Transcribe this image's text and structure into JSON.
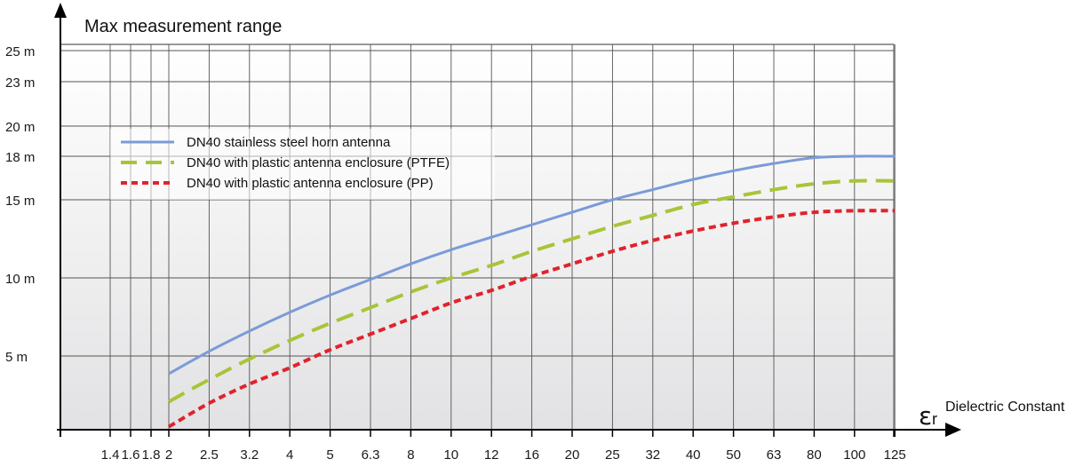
{
  "chart_data": {
    "type": "line",
    "ylabel": "Max measurement range",
    "xlabel": "Dielectric Constant",
    "xlabel_symbol": "ε",
    "xlabel_symbol_sub": "r",
    "x_categories": [
      "",
      "1.4",
      "1.6",
      "1.8",
      "2",
      "2.5",
      "3.2",
      "4",
      "5",
      "6.3",
      "8",
      "10",
      "12",
      "16",
      "20",
      "25",
      "32",
      "40",
      "50",
      "63",
      "80",
      "100",
      "125"
    ],
    "y_ticks": [
      {
        "value": 5,
        "label": "5 m"
      },
      {
        "value": 10,
        "label": "10 m"
      },
      {
        "value": 15,
        "label": "15 m"
      },
      {
        "value": 18,
        "label": "18 m"
      },
      {
        "value": 20,
        "label": "20 m"
      },
      {
        "value": 23,
        "label": "23 m"
      },
      {
        "value": 25,
        "label": "25 m"
      }
    ],
    "ylim": [
      0,
      25
    ],
    "grid": true,
    "legend_position": "upper-left",
    "series": [
      {
        "name": "DN40 stainless steel horn antenna",
        "color": "#7b9bd8",
        "style": "solid",
        "points": [
          [
            2,
            3.8
          ],
          [
            2.5,
            5.3
          ],
          [
            3.2,
            6.6
          ],
          [
            4,
            7.8
          ],
          [
            5,
            8.9
          ],
          [
            6.3,
            9.9
          ],
          [
            8,
            10.9
          ],
          [
            10,
            11.8
          ],
          [
            12,
            12.6
          ],
          [
            16,
            13.4
          ],
          [
            20,
            14.2
          ],
          [
            25,
            15.0
          ],
          [
            32,
            15.7
          ],
          [
            40,
            16.4
          ],
          [
            50,
            17.0
          ],
          [
            63,
            17.5
          ],
          [
            80,
            17.9
          ],
          [
            100,
            18.0
          ],
          [
            125,
            18.0
          ]
        ]
      },
      {
        "name": "DN40 with plastic antenna enclosure (PTFE)",
        "color": "#a7c538",
        "style": "dash",
        "points": [
          [
            2,
            1.9
          ],
          [
            2.5,
            3.4
          ],
          [
            3.2,
            4.8
          ],
          [
            4,
            6.0
          ],
          [
            5,
            7.1
          ],
          [
            6.3,
            8.1
          ],
          [
            8,
            9.1
          ],
          [
            10,
            10.0
          ],
          [
            12,
            10.8
          ],
          [
            16,
            11.7
          ],
          [
            20,
            12.5
          ],
          [
            25,
            13.3
          ],
          [
            32,
            14.0
          ],
          [
            40,
            14.7
          ],
          [
            50,
            15.2
          ],
          [
            63,
            15.7
          ],
          [
            80,
            16.1
          ],
          [
            100,
            16.3
          ],
          [
            125,
            16.3
          ]
        ]
      },
      {
        "name": "DN40 with plastic antenna enclosure (PP)",
        "color": "#e0232c",
        "style": "dot",
        "points": [
          [
            2,
            0.2
          ],
          [
            2.5,
            1.8
          ],
          [
            3.2,
            3.1
          ],
          [
            4,
            4.2
          ],
          [
            5,
            5.4
          ],
          [
            6.3,
            6.4
          ],
          [
            8,
            7.4
          ],
          [
            10,
            8.4
          ],
          [
            12,
            9.2
          ],
          [
            16,
            10.1
          ],
          [
            20,
            10.9
          ],
          [
            25,
            11.7
          ],
          [
            32,
            12.4
          ],
          [
            40,
            13.0
          ],
          [
            50,
            13.5
          ],
          [
            63,
            13.9
          ],
          [
            80,
            14.2
          ],
          [
            100,
            14.3
          ],
          [
            125,
            14.3
          ]
        ]
      }
    ]
  }
}
